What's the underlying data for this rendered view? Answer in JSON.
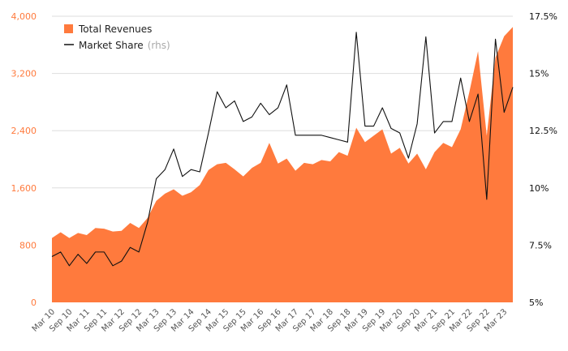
{
  "chart_data": {
    "type": "area",
    "title": "",
    "xlabel": "",
    "ylabel": "",
    "y_left": {
      "ylim": [
        0,
        4000
      ],
      "ticks": [
        0,
        800,
        1600,
        2400,
        3200,
        4000
      ],
      "tick_labels": [
        "0",
        "800",
        "1,600",
        "2,400",
        "3,200",
        "4,000"
      ]
    },
    "y_right": {
      "ylim": [
        5,
        17.5
      ],
      "ticks": [
        5,
        7.5,
        10,
        12.5,
        15,
        17.5
      ],
      "tick_labels": [
        "5%",
        "7.5%",
        "10%",
        "12.5%",
        "15%",
        "17.5%"
      ]
    },
    "x_labels": [
      "Mar 10",
      "Sep 10",
      "Mar 11",
      "Sep 11",
      "Mar 12",
      "Sep 12",
      "Mar 13",
      "Sep 13",
      "Mar 14",
      "Sep 14",
      "Mar 15",
      "Sep 15",
      "Mar 16",
      "Sep 16",
      "Mar 17",
      "Sep 17",
      "Mar 18",
      "Sep 18",
      "Mar 19",
      "Sep 19",
      "Mar 20",
      "Sep 20",
      "Mar 21",
      "Sep 21",
      "Mar 22",
      "Sep 22",
      "Mar 23"
    ],
    "x_label_every": 2,
    "grid": true,
    "legend": {
      "placement": "top-left",
      "items": [
        {
          "label": "Total Revenues",
          "suffix": "",
          "marker": "square"
        },
        {
          "label": "Market Share",
          "suffix": "(rhs)",
          "marker": "line"
        }
      ]
    },
    "colors": {
      "revenue_fill": "#ff7a3d",
      "share_line": "#111111",
      "grid": "#dddddd",
      "left_axis_text": "#ff7a3d",
      "right_axis_text": "#111111"
    },
    "series": [
      {
        "name": "Total Revenues",
        "axis": "left",
        "kind": "area",
        "values": [
          900,
          980,
          900,
          970,
          940,
          1040,
          1030,
          990,
          1000,
          1110,
          1040,
          1180,
          1420,
          1520,
          1580,
          1490,
          1540,
          1640,
          1850,
          1930,
          1950,
          1860,
          1760,
          1880,
          1950,
          2230,
          1940,
          2010,
          1840,
          1950,
          1930,
          1990,
          1970,
          2100,
          2050,
          2440,
          2240,
          2330,
          2420,
          2080,
          2160,
          1940,
          2080,
          1860,
          2100,
          2230,
          2170,
          2420,
          2940,
          3510,
          2330,
          3420,
          3720,
          3850
        ]
      },
      {
        "name": "Market Share",
        "axis": "right",
        "kind": "line",
        "values": [
          7.0,
          7.2,
          6.6,
          7.1,
          6.7,
          7.2,
          7.2,
          6.6,
          6.8,
          7.4,
          7.2,
          8.5,
          10.4,
          10.8,
          11.7,
          10.5,
          10.8,
          10.7,
          12.4,
          14.2,
          13.5,
          13.8,
          12.9,
          13.1,
          13.7,
          13.2,
          13.5,
          14.5,
          12.3,
          12.3,
          12.3,
          12.3,
          12.2,
          12.1,
          12.0,
          16.8,
          12.7,
          12.7,
          13.5,
          12.6,
          12.4,
          11.3,
          12.8,
          16.6,
          12.4,
          12.9,
          12.9,
          14.8,
          12.9,
          14.1,
          9.5,
          16.5,
          13.3,
          14.4
        ]
      }
    ]
  }
}
